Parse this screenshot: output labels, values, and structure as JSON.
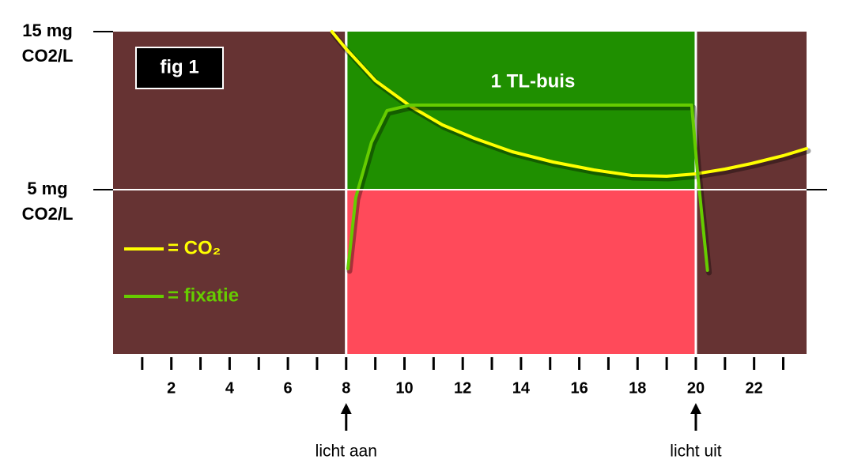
{
  "chart_data": {
    "type": "line",
    "fig_label": "fig 1",
    "region_label": "1 TL-buis",
    "xlim": [
      0,
      23.8
    ],
    "ylim": [
      -5.4,
      15
    ],
    "xticks": [
      2,
      4,
      6,
      8,
      10,
      12,
      14,
      16,
      18,
      20,
      22
    ],
    "xminorticks": [
      1,
      3,
      5,
      7,
      9,
      11,
      13,
      15,
      17,
      19,
      21,
      23
    ],
    "yticks": [
      {
        "value": 15,
        "label": "15 mg\nCO2/L"
      },
      {
        "value": 5,
        "label": "5 mg\nCO2/L"
      }
    ],
    "background": "#663333",
    "regions": [
      {
        "x": [
          8,
          20
        ],
        "y": [
          5,
          15
        ],
        "color": "#1f8f00"
      },
      {
        "x": [
          8,
          20
        ],
        "y": [
          -5.4,
          5
        ],
        "color": "#ff4a5a"
      }
    ],
    "annotations": [
      {
        "text": "licht aan",
        "x": 8
      },
      {
        "text": "licht uit",
        "x": 20
      }
    ],
    "series": [
      {
        "name": "= CO₂",
        "color": "#ffff00",
        "x": [
          7.51,
          8,
          9,
          10.23,
          11.3,
          12.4,
          13.7,
          15.1,
          16.5,
          17.8,
          19,
          20,
          21,
          21.9,
          23,
          23.8
        ],
        "values": [
          15,
          13.9,
          11.9,
          10.25,
          9.1,
          8.25,
          7.4,
          6.75,
          6.25,
          5.9,
          5.85,
          6.0,
          6.3,
          6.65,
          7.15,
          7.6
        ]
      },
      {
        "name": "= fixatie",
        "color": "#66cc00",
        "x": [
          8.06,
          8.33,
          8.87,
          9.4,
          10.2,
          19.86,
          20.05,
          20.4
        ],
        "values": [
          0,
          4.5,
          8,
          10,
          10.35,
          10.35,
          6.25,
          -0.1
        ]
      }
    ]
  }
}
